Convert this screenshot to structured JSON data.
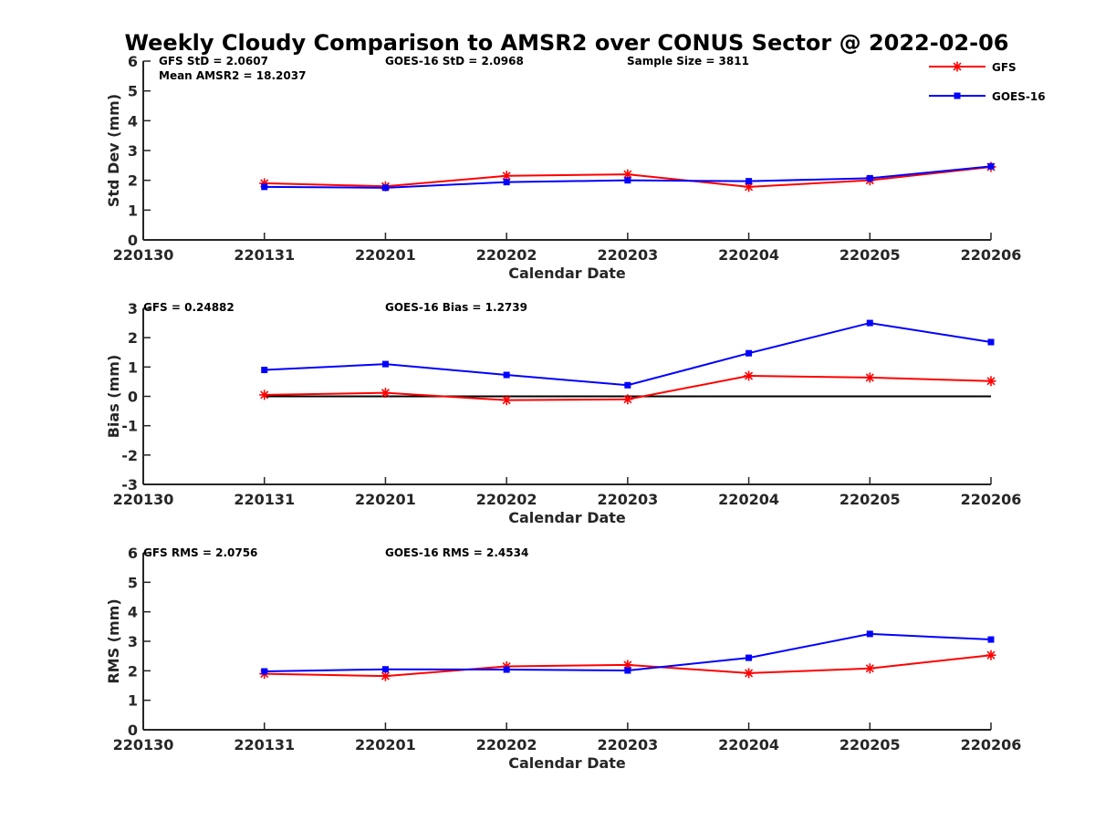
{
  "title": "Weekly Cloudy Comparison to AMSR2 over CONUS Sector @ 2022-02-06",
  "colors": {
    "GFS": "#ff0000",
    "GOES-16": "#0000ff",
    "axis": "#262626",
    "zero_line": "#000000"
  },
  "legend": {
    "placement": "top-right",
    "entries": [
      "GFS",
      "GOES-16"
    ]
  },
  "chart_data": [
    {
      "type": "line",
      "x": [
        "220130",
        "220131",
        "220201",
        "220202",
        "220203",
        "220204",
        "220205",
        "220206"
      ],
      "xlabel": "Calendar Date",
      "ylabel": "Std Dev (mm)",
      "ylim": [
        0,
        6
      ],
      "yticks": [
        "0",
        "1",
        "2",
        "3",
        "4",
        "5",
        "6"
      ],
      "grid": false,
      "stats": [
        "GFS StD = 2.0607",
        "GOES-16 StD = 2.0968",
        "Sample Size = 3811",
        "Mean AMSR2 = 18.2037"
      ],
      "series": [
        {
          "name": "GFS",
          "marker": "asterisk",
          "x": [
            "220131",
            "220201",
            "220202",
            "220203",
            "220204",
            "220205",
            "220206"
          ],
          "values": [
            1.9,
            1.8,
            2.15,
            2.2,
            1.78,
            2.0,
            2.45
          ]
        },
        {
          "name": "GOES-16",
          "marker": "square",
          "x": [
            "220131",
            "220201",
            "220202",
            "220203",
            "220204",
            "220205",
            "220206"
          ],
          "values": [
            1.78,
            1.75,
            1.94,
            2.0,
            1.97,
            2.07,
            2.47
          ]
        }
      ]
    },
    {
      "type": "line",
      "x": [
        "220130",
        "220131",
        "220201",
        "220202",
        "220203",
        "220204",
        "220205",
        "220206"
      ],
      "xlabel": "Calendar Date",
      "ylabel": "Bias (mm)",
      "ylim": [
        -3,
        3
      ],
      "yticks": [
        "-3",
        "-2",
        "-1",
        "0",
        "1",
        "2",
        "3"
      ],
      "grid": false,
      "zero_line": true,
      "stats": [
        "GFS = 0.24882",
        "GOES-16 Bias  = 1.2739"
      ],
      "series": [
        {
          "name": "GFS",
          "marker": "asterisk",
          "x": [
            "220131",
            "220201",
            "220202",
            "220203",
            "220204",
            "220205",
            "220206"
          ],
          "values": [
            0.05,
            0.12,
            -0.13,
            -0.1,
            0.7,
            0.64,
            0.52
          ]
        },
        {
          "name": "GOES-16",
          "marker": "square",
          "x": [
            "220131",
            "220201",
            "220202",
            "220203",
            "220204",
            "220205",
            "220206"
          ],
          "values": [
            0.9,
            1.1,
            0.73,
            0.38,
            1.47,
            2.5,
            1.85
          ]
        }
      ]
    },
    {
      "type": "line",
      "x": [
        "220130",
        "220131",
        "220201",
        "220202",
        "220203",
        "220204",
        "220205",
        "220206"
      ],
      "xlabel": "Calendar Date",
      "ylabel": "RMS (mm)",
      "ylim": [
        0,
        6
      ],
      "yticks": [
        "0",
        "1",
        "2",
        "3",
        "4",
        "5",
        "6"
      ],
      "grid": false,
      "stats": [
        "GFS RMS = 2.0756",
        "GOES-16 RMS = 2.4534"
      ],
      "series": [
        {
          "name": "GFS",
          "marker": "asterisk",
          "x": [
            "220131",
            "220201",
            "220202",
            "220203",
            "220204",
            "220205",
            "220206"
          ],
          "values": [
            1.9,
            1.82,
            2.15,
            2.2,
            1.92,
            2.08,
            2.53
          ]
        },
        {
          "name": "GOES-16",
          "marker": "square",
          "x": [
            "220131",
            "220201",
            "220202",
            "220203",
            "220204",
            "220205",
            "220206"
          ],
          "values": [
            1.98,
            2.05,
            2.04,
            2.01,
            2.44,
            3.25,
            3.06
          ]
        }
      ]
    }
  ]
}
